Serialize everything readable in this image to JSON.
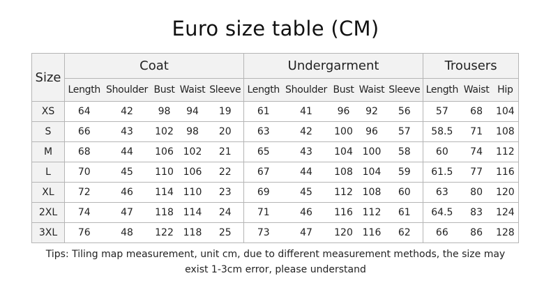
{
  "title": "Euro size table (CM)",
  "table": {
    "size_header": "Size",
    "groups": [
      "Coat",
      "Undergarment",
      "Trousers"
    ],
    "subheaders": [
      "Length",
      "Shoulder",
      "Bust",
      "Waist",
      "Sleeve",
      "Length",
      "Shoulder",
      "Bust",
      "Waist",
      "Sleeve",
      "Length",
      "Waist",
      "Hip"
    ],
    "rows": [
      {
        "size": "XS",
        "values": [
          "64",
          "42",
          "98",
          "94",
          "19",
          "61",
          "41",
          "96",
          "92",
          "56",
          "57",
          "68",
          "104"
        ]
      },
      {
        "size": "S",
        "values": [
          "66",
          "43",
          "102",
          "98",
          "20",
          "63",
          "42",
          "100",
          "96",
          "57",
          "58.5",
          "71",
          "108"
        ]
      },
      {
        "size": "M",
        "values": [
          "68",
          "44",
          "106",
          "102",
          "21",
          "65",
          "43",
          "104",
          "100",
          "58",
          "60",
          "74",
          "112"
        ]
      },
      {
        "size": "L",
        "values": [
          "70",
          "45",
          "110",
          "106",
          "22",
          "67",
          "44",
          "108",
          "104",
          "59",
          "61.5",
          "77",
          "116"
        ]
      },
      {
        "size": "XL",
        "values": [
          "72",
          "46",
          "114",
          "110",
          "23",
          "69",
          "45",
          "112",
          "108",
          "60",
          "63",
          "80",
          "120"
        ]
      },
      {
        "size": "2XL",
        "values": [
          "74",
          "47",
          "118",
          "114",
          "24",
          "71",
          "46",
          "116",
          "112",
          "61",
          "64.5",
          "83",
          "124"
        ]
      },
      {
        "size": "3XL",
        "values": [
          "76",
          "48",
          "122",
          "118",
          "25",
          "73",
          "47",
          "120",
          "116",
          "62",
          "66",
          "86",
          "128"
        ]
      }
    ]
  },
  "tips": {
    "line1": "Tips: Tiling map measurement, unit cm, due to different measurement methods, the size may",
    "line2": "exist 1-3cm error, please understand"
  }
}
